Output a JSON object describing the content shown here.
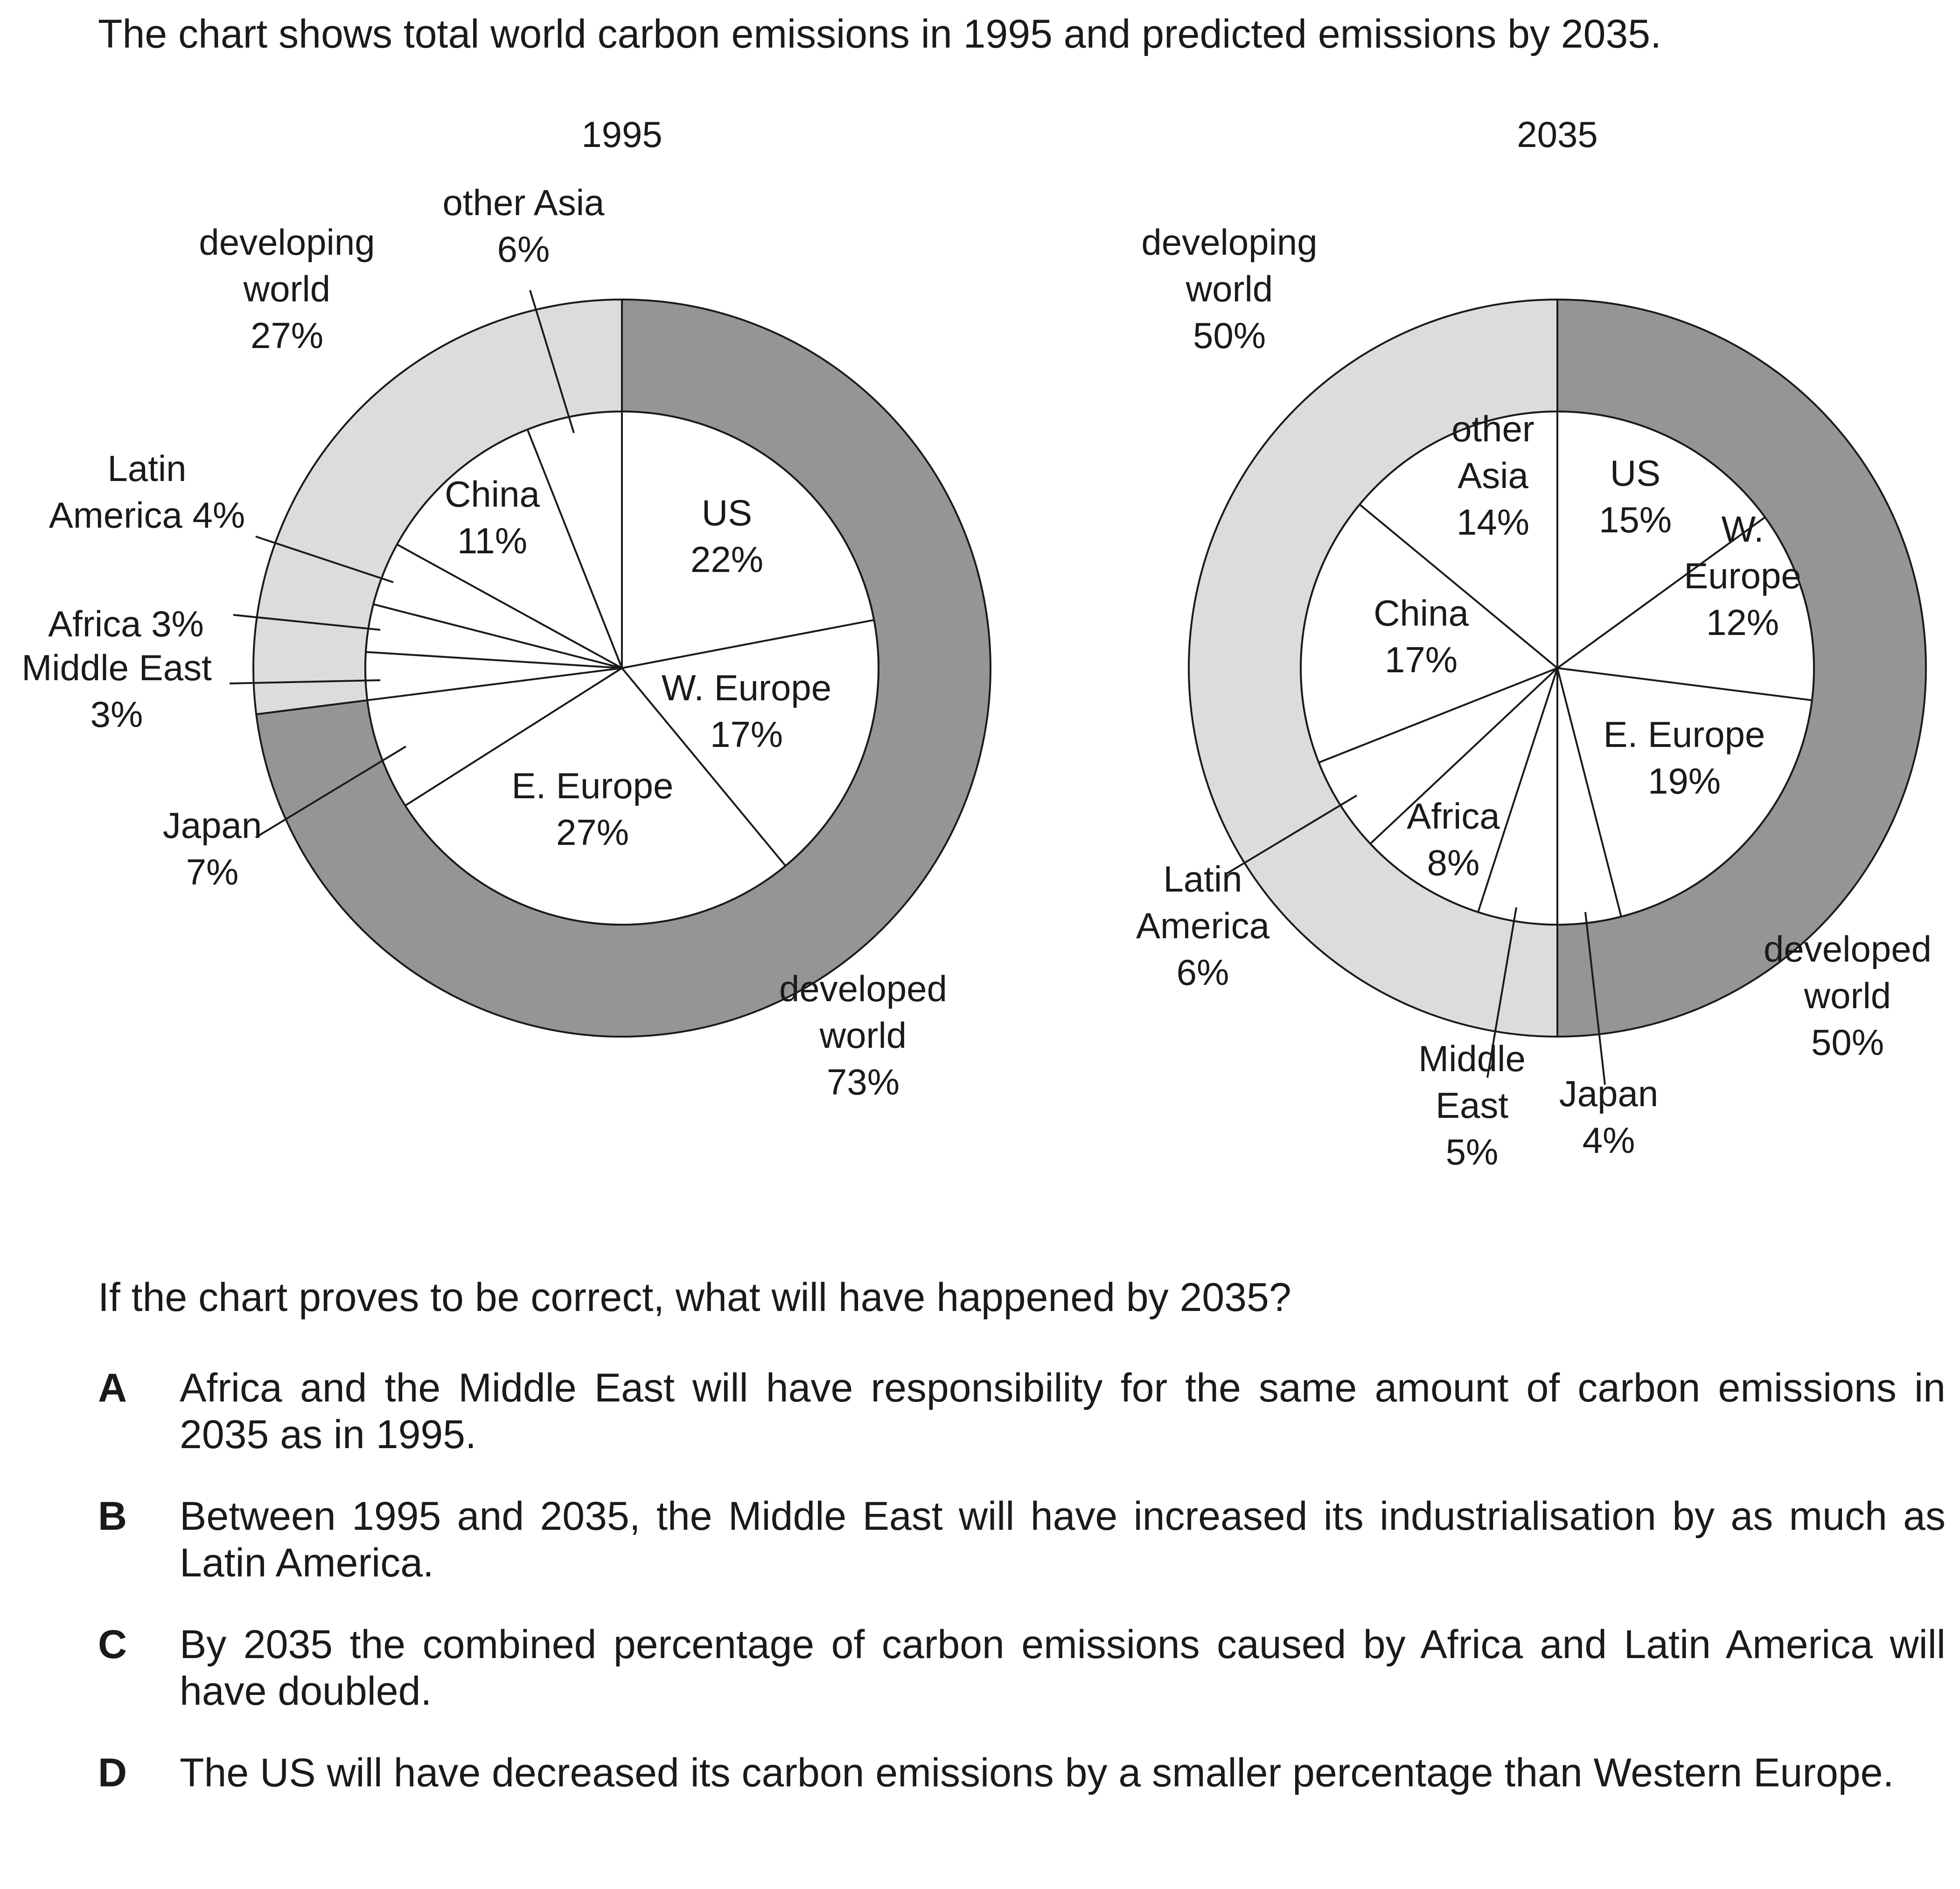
{
  "intro": "The chart shows total world carbon emissions in 1995 and predicted emissions by 2035.",
  "question": "If the chart proves to be correct, what will have happened by 2035?",
  "options": [
    {
      "letter": "A",
      "text": "Africa and the Middle East will have responsibility for the same amount of carbon emissions in 2035 as in 1995."
    },
    {
      "letter": "B",
      "text": "Between 1995 and 2035, the Middle East will have increased its industrialisation by as much as Latin America."
    },
    {
      "letter": "C",
      "text": "By 2035 the combined percentage of carbon emissions caused by Africa and Latin America will have doubled."
    },
    {
      "letter": "D",
      "text": "The US will have decreased its carbon emissions by a smaller percentage than Western Europe."
    }
  ],
  "colors": {
    "developed_ring": "#959595",
    "developing_ring": "#dcdcdc",
    "inner_fill": "#ffffff",
    "stroke": "#1a1a1a"
  },
  "chart_data": [
    {
      "type": "pie",
      "title": "1995",
      "outer_ring": [
        {
          "name": "developed world",
          "value": 73,
          "label_lines": [
            "developed",
            "world",
            "73%"
          ],
          "color_key": "developed_ring"
        },
        {
          "name": "developing world",
          "value": 27,
          "label_lines": [
            "developing",
            "world",
            "27%"
          ],
          "color_key": "developing_ring"
        }
      ],
      "slices": [
        {
          "name": "US",
          "value": 22,
          "group": "developed",
          "label_lines": [
            "US",
            "22%"
          ]
        },
        {
          "name": "W. Europe",
          "value": 17,
          "group": "developed",
          "label_lines": [
            "W. Europe",
            "17%"
          ]
        },
        {
          "name": "E. Europe",
          "value": 27,
          "group": "developed",
          "label_lines": [
            "E. Europe",
            "27%"
          ]
        },
        {
          "name": "Japan",
          "value": 7,
          "group": "developed",
          "label_lines": [
            "Japan",
            "7%"
          ]
        },
        {
          "name": "Middle East",
          "value": 3,
          "group": "developing",
          "label_lines": [
            "Middle East",
            "3%"
          ]
        },
        {
          "name": "Africa",
          "value": 3,
          "group": "developing",
          "label_lines": [
            "Africa 3%"
          ]
        },
        {
          "name": "Latin America",
          "value": 4,
          "group": "developing",
          "label_lines": [
            "Latin",
            "America 4%"
          ]
        },
        {
          "name": "China",
          "value": 11,
          "group": "developing",
          "label_lines": [
            "China",
            "11%"
          ]
        },
        {
          "name": "other Asia",
          "value": 6,
          "group": "developing",
          "label_lines": [
            "other Asia",
            "6%"
          ]
        }
      ]
    },
    {
      "type": "pie",
      "title": "2035",
      "outer_ring": [
        {
          "name": "developed world",
          "value": 50,
          "label_lines": [
            "developed",
            "world",
            "50%"
          ],
          "color_key": "developed_ring"
        },
        {
          "name": "developing world",
          "value": 50,
          "label_lines": [
            "developing",
            "world",
            "50%"
          ],
          "color_key": "developing_ring"
        }
      ],
      "slices": [
        {
          "name": "US",
          "value": 15,
          "group": "developed",
          "label_lines": [
            "US",
            "15%"
          ]
        },
        {
          "name": "W. Europe",
          "value": 12,
          "group": "developed",
          "label_lines": [
            "W.",
            "Europe",
            "12%"
          ]
        },
        {
          "name": "E. Europe",
          "value": 19,
          "group": "developed",
          "label_lines": [
            "E. Europe",
            "19%"
          ]
        },
        {
          "name": "Japan",
          "value": 4,
          "group": "developed",
          "label_lines": [
            "Japan",
            "4%"
          ]
        },
        {
          "name": "Middle East",
          "value": 5,
          "group": "developing",
          "label_lines": [
            "Middle",
            "East",
            "5%"
          ]
        },
        {
          "name": "Africa",
          "value": 8,
          "group": "developing",
          "label_lines": [
            "Africa",
            "8%"
          ]
        },
        {
          "name": "Latin America",
          "value": 6,
          "group": "developing",
          "label_lines": [
            "Latin",
            "America",
            "6%"
          ]
        },
        {
          "name": "China",
          "value": 17,
          "group": "developing",
          "label_lines": [
            "China",
            "17%"
          ]
        },
        {
          "name": "other Asia",
          "value": 14,
          "group": "developing",
          "label_lines": [
            "other",
            "Asia",
            "14%"
          ]
        }
      ]
    }
  ]
}
